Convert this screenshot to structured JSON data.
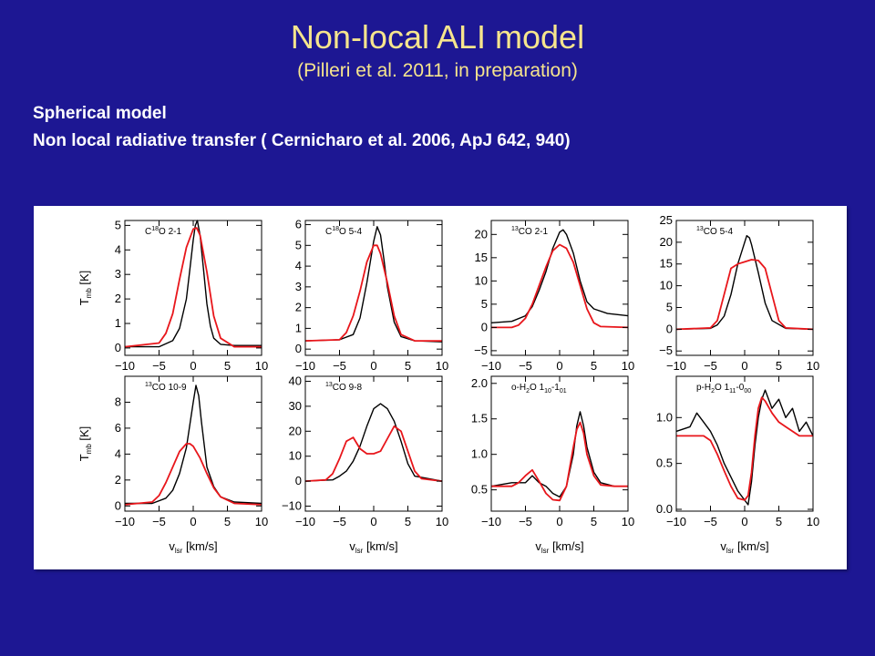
{
  "header": {
    "title": "Non-local ALI model",
    "subtitle": "(Pilleri et al. 2011, in preparation)"
  },
  "description": {
    "line1": "Spherical model",
    "line2": "Non local radiative transfer ( Cernicharo et al. 2006, ApJ 642, 940)"
  },
  "axis_titles": {
    "y_top": "Tmb [K]",
    "y_bottom": "Tmb [K]",
    "x": [
      "vlsr [km/s]",
      "vlsr [km/s]",
      "vlsr [km/s]",
      "vlsr [km/s]"
    ]
  },
  "colors": {
    "observed": "#000000",
    "model": "#e8161b",
    "background": "#1d1793",
    "title": "#f6e58d"
  },
  "chart_data": [
    {
      "type": "line",
      "label": "C18O 2-1",
      "xlim": [
        -10,
        10
      ],
      "ylim": [
        -0.3,
        5.2
      ],
      "xticks": [
        -10,
        -5,
        0,
        5,
        10
      ],
      "yticks": [
        0,
        1,
        2,
        3,
        4,
        5
      ],
      "series": [
        {
          "name": "",
          "color": "#000000",
          "x": [
            -10,
            -5,
            -3,
            -2,
            -1,
            -0.5,
            0,
            0.3,
            0.6,
            1,
            1.5,
            2,
            2.5,
            3,
            4,
            6,
            10
          ],
          "y": [
            0.05,
            0.05,
            0.3,
            0.8,
            2.0,
            3.2,
            4.4,
            5.0,
            5.2,
            4.6,
            3.2,
            1.8,
            0.9,
            0.4,
            0.15,
            0.1,
            0.1
          ]
        },
        {
          "name": "",
          "color": "#e8161b",
          "x": [
            -10,
            -5,
            -4,
            -3,
            -2,
            -1,
            0,
            0.5,
            1,
            2,
            3,
            4,
            6,
            10
          ],
          "y": [
            0.05,
            0.2,
            0.6,
            1.4,
            2.8,
            4.1,
            4.85,
            4.9,
            4.6,
            3.1,
            1.3,
            0.4,
            0.05,
            0.05
          ]
        }
      ]
    },
    {
      "type": "line",
      "label": "C18O 5-4",
      "xlim": [
        -10,
        10
      ],
      "ylim": [
        -0.3,
        6.2
      ],
      "xticks": [
        -10,
        -5,
        0,
        5,
        10
      ],
      "yticks": [
        0,
        1,
        2,
        3,
        4,
        5,
        6
      ],
      "series": [
        {
          "name": "",
          "color": "#000000",
          "x": [
            -10,
            -5,
            -3,
            -2,
            -1,
            0,
            0.5,
            1,
            1.5,
            2,
            3,
            4,
            6,
            10
          ],
          "y": [
            0.4,
            0.45,
            0.7,
            1.5,
            3.2,
            5.2,
            5.9,
            5.5,
            4.3,
            3.0,
            1.3,
            0.6,
            0.4,
            0.35
          ]
        },
        {
          "name": "",
          "color": "#e8161b",
          "x": [
            -10,
            -5,
            -4,
            -3,
            -2,
            -1,
            0,
            0.5,
            1,
            2,
            3,
            4,
            6,
            10
          ],
          "y": [
            0.4,
            0.45,
            0.8,
            1.6,
            2.8,
            4.2,
            5.0,
            5.0,
            4.6,
            3.2,
            1.6,
            0.7,
            0.4,
            0.4
          ]
        }
      ]
    },
    {
      "type": "line",
      "label": "13CO 2-1",
      "xlim": [
        -10,
        10
      ],
      "ylim": [
        -6,
        23
      ],
      "xticks": [
        -10,
        -5,
        0,
        5,
        10
      ],
      "yticks": [
        -5,
        0,
        5,
        10,
        15,
        20
      ],
      "series": [
        {
          "name": "",
          "color": "#000000",
          "x": [
            -10,
            -7,
            -5,
            -4,
            -3,
            -2,
            -1,
            0,
            0.5,
            1,
            2,
            3,
            4,
            5,
            7,
            10
          ],
          "y": [
            1,
            1.3,
            2.5,
            4.5,
            8,
            12,
            17,
            20.5,
            21,
            20,
            16,
            10,
            5.5,
            4,
            3,
            2.5
          ]
        },
        {
          "name": "",
          "color": "#e8161b",
          "x": [
            -10,
            -7,
            -6,
            -5,
            -4,
            -3,
            -2,
            -1,
            0,
            1,
            2,
            3,
            4,
            5,
            6,
            10
          ],
          "y": [
            0,
            0,
            0.5,
            2,
            5,
            9,
            13,
            16.5,
            17.8,
            17,
            14,
            9,
            4,
            1,
            0.2,
            0
          ]
        }
      ]
    },
    {
      "type": "line",
      "label": "13CO 5-4",
      "xlim": [
        -10,
        10
      ],
      "ylim": [
        -6,
        25
      ],
      "xticks": [
        -10,
        -5,
        0,
        5,
        10
      ],
      "yticks": [
        -5,
        0,
        5,
        10,
        15,
        20,
        25
      ],
      "series": [
        {
          "name": "",
          "color": "#000000",
          "x": [
            -10,
            -5,
            -4,
            -3,
            -2,
            -1,
            0,
            0.3,
            0.7,
            1,
            2,
            3,
            4,
            6,
            10
          ],
          "y": [
            0,
            0.2,
            1,
            3,
            8,
            15,
            20,
            21.5,
            21,
            19.5,
            13,
            6,
            2,
            0.2,
            0
          ]
        },
        {
          "name": "",
          "color": "#e8161b",
          "x": [
            -10,
            -5,
            -4,
            -3,
            -2,
            -1,
            0,
            1,
            2,
            3,
            4,
            5,
            6,
            10
          ],
          "y": [
            0,
            0.3,
            2,
            8,
            14,
            15,
            15.5,
            16,
            15.8,
            14,
            8,
            2,
            0.3,
            0
          ]
        }
      ]
    },
    {
      "type": "line",
      "label": "13CO 10-9",
      "xlim": [
        -10,
        10
      ],
      "ylim": [
        -0.4,
        10
      ],
      "xticks": [
        -10,
        -5,
        0,
        5,
        10
      ],
      "yticks": [
        0,
        2,
        4,
        6,
        8
      ],
      "series": [
        {
          "name": "",
          "color": "#000000",
          "x": [
            -10,
            -6,
            -4,
            -3,
            -2,
            -1,
            0,
            0.4,
            0.8,
            1.2,
            2,
            3,
            4,
            6,
            10
          ],
          "y": [
            0.2,
            0.2,
            0.6,
            1.2,
            2.5,
            4.5,
            8,
            9.3,
            8.5,
            6.5,
            3,
            1.5,
            0.7,
            0.3,
            0.2
          ]
        },
        {
          "name": "",
          "color": "#e8161b",
          "x": [
            -10,
            -6,
            -5,
            -4,
            -3,
            -2,
            -1,
            -0.5,
            0,
            1,
            2,
            3,
            4,
            6,
            10
          ],
          "y": [
            0.1,
            0.3,
            0.8,
            1.8,
            3.0,
            4.2,
            4.8,
            4.8,
            4.6,
            3.7,
            2.5,
            1.4,
            0.7,
            0.2,
            0.1
          ]
        }
      ]
    },
    {
      "type": "line",
      "label": "13CO 9-8",
      "xlim": [
        -10,
        10
      ],
      "ylim": [
        -12,
        42
      ],
      "xticks": [
        -10,
        -5,
        0,
        5,
        10
      ],
      "yticks": [
        -10,
        0,
        10,
        20,
        30,
        40
      ],
      "series": [
        {
          "name": "",
          "color": "#000000",
          "x": [
            -10,
            -6,
            -5,
            -4,
            -3,
            -2,
            -1,
            0,
            1,
            2,
            3,
            4,
            5,
            6,
            10
          ],
          "y": [
            0,
            0.5,
            2,
            4,
            8,
            14,
            22,
            29,
            31,
            29,
            24,
            16,
            7,
            2,
            0
          ]
        },
        {
          "name": "",
          "color": "#e8161b",
          "x": [
            -10,
            -7,
            -6,
            -5,
            -4,
            -3,
            -2,
            -1,
            0,
            1,
            2,
            3,
            4,
            5,
            6,
            7,
            10
          ],
          "y": [
            0,
            0.5,
            3,
            9,
            16,
            17.5,
            13,
            11,
            11,
            12,
            17,
            22,
            20,
            12,
            4,
            1,
            0
          ]
        }
      ]
    },
    {
      "type": "line",
      "label": "o-H2O 110-101",
      "xlim": [
        -10,
        10
      ],
      "ylim": [
        0.2,
        2.1
      ],
      "xticks": [
        -10,
        -5,
        0,
        5,
        10
      ],
      "yticks": [
        0.5,
        1.0,
        1.5,
        2.0
      ],
      "series": [
        {
          "name": "",
          "color": "#000000",
          "x": [
            -10,
            -7,
            -5,
            -4,
            -3,
            -2,
            -1,
            0,
            1,
            2,
            2.5,
            3,
            3.5,
            4,
            5,
            6,
            8,
            10
          ],
          "y": [
            0.55,
            0.6,
            0.6,
            0.7,
            0.6,
            0.55,
            0.45,
            0.4,
            0.55,
            1.0,
            1.4,
            1.6,
            1.4,
            1.1,
            0.75,
            0.6,
            0.55,
            0.55
          ]
        },
        {
          "name": "",
          "color": "#e8161b",
          "x": [
            -10,
            -7,
            -6,
            -5,
            -4,
            -3,
            -2,
            -1,
            0,
            1,
            2,
            2.5,
            3,
            3.5,
            4,
            5,
            6,
            8,
            10
          ],
          "y": [
            0.55,
            0.55,
            0.6,
            0.7,
            0.78,
            0.62,
            0.45,
            0.36,
            0.35,
            0.55,
            1.1,
            1.35,
            1.45,
            1.3,
            1.0,
            0.7,
            0.57,
            0.55,
            0.55
          ]
        }
      ]
    },
    {
      "type": "line",
      "label": "p-H2O 111-000",
      "xlim": [
        -10,
        10
      ],
      "ylim": [
        -0.02,
        1.45
      ],
      "xticks": [
        -10,
        -5,
        0,
        5,
        10
      ],
      "yticks": [
        0.0,
        0.5,
        1.0
      ],
      "series": [
        {
          "name": "",
          "color": "#000000",
          "x": [
            -10,
            -8,
            -7,
            -6,
            -5,
            -4,
            -3,
            -2,
            -1,
            0,
            0.5,
            1,
            1.5,
            2,
            2.5,
            3,
            4,
            5,
            6,
            7,
            8,
            9,
            10
          ],
          "y": [
            0.85,
            0.9,
            1.05,
            0.95,
            0.85,
            0.7,
            0.5,
            0.35,
            0.2,
            0.1,
            0.05,
            0.3,
            0.7,
            1.0,
            1.2,
            1.3,
            1.1,
            1.2,
            1.0,
            1.1,
            0.85,
            0.95,
            0.8
          ]
        },
        {
          "name": "",
          "color": "#e8161b",
          "x": [
            -10,
            -6,
            -5,
            -4,
            -3,
            -2,
            -1,
            0,
            0.5,
            1,
            1.5,
            2,
            2.5,
            3,
            4,
            5,
            6,
            7,
            8,
            10
          ],
          "y": [
            0.8,
            0.8,
            0.75,
            0.6,
            0.42,
            0.25,
            0.12,
            0.1,
            0.15,
            0.4,
            0.8,
            1.1,
            1.22,
            1.18,
            1.05,
            0.95,
            0.9,
            0.85,
            0.8,
            0.8
          ]
        }
      ]
    }
  ]
}
